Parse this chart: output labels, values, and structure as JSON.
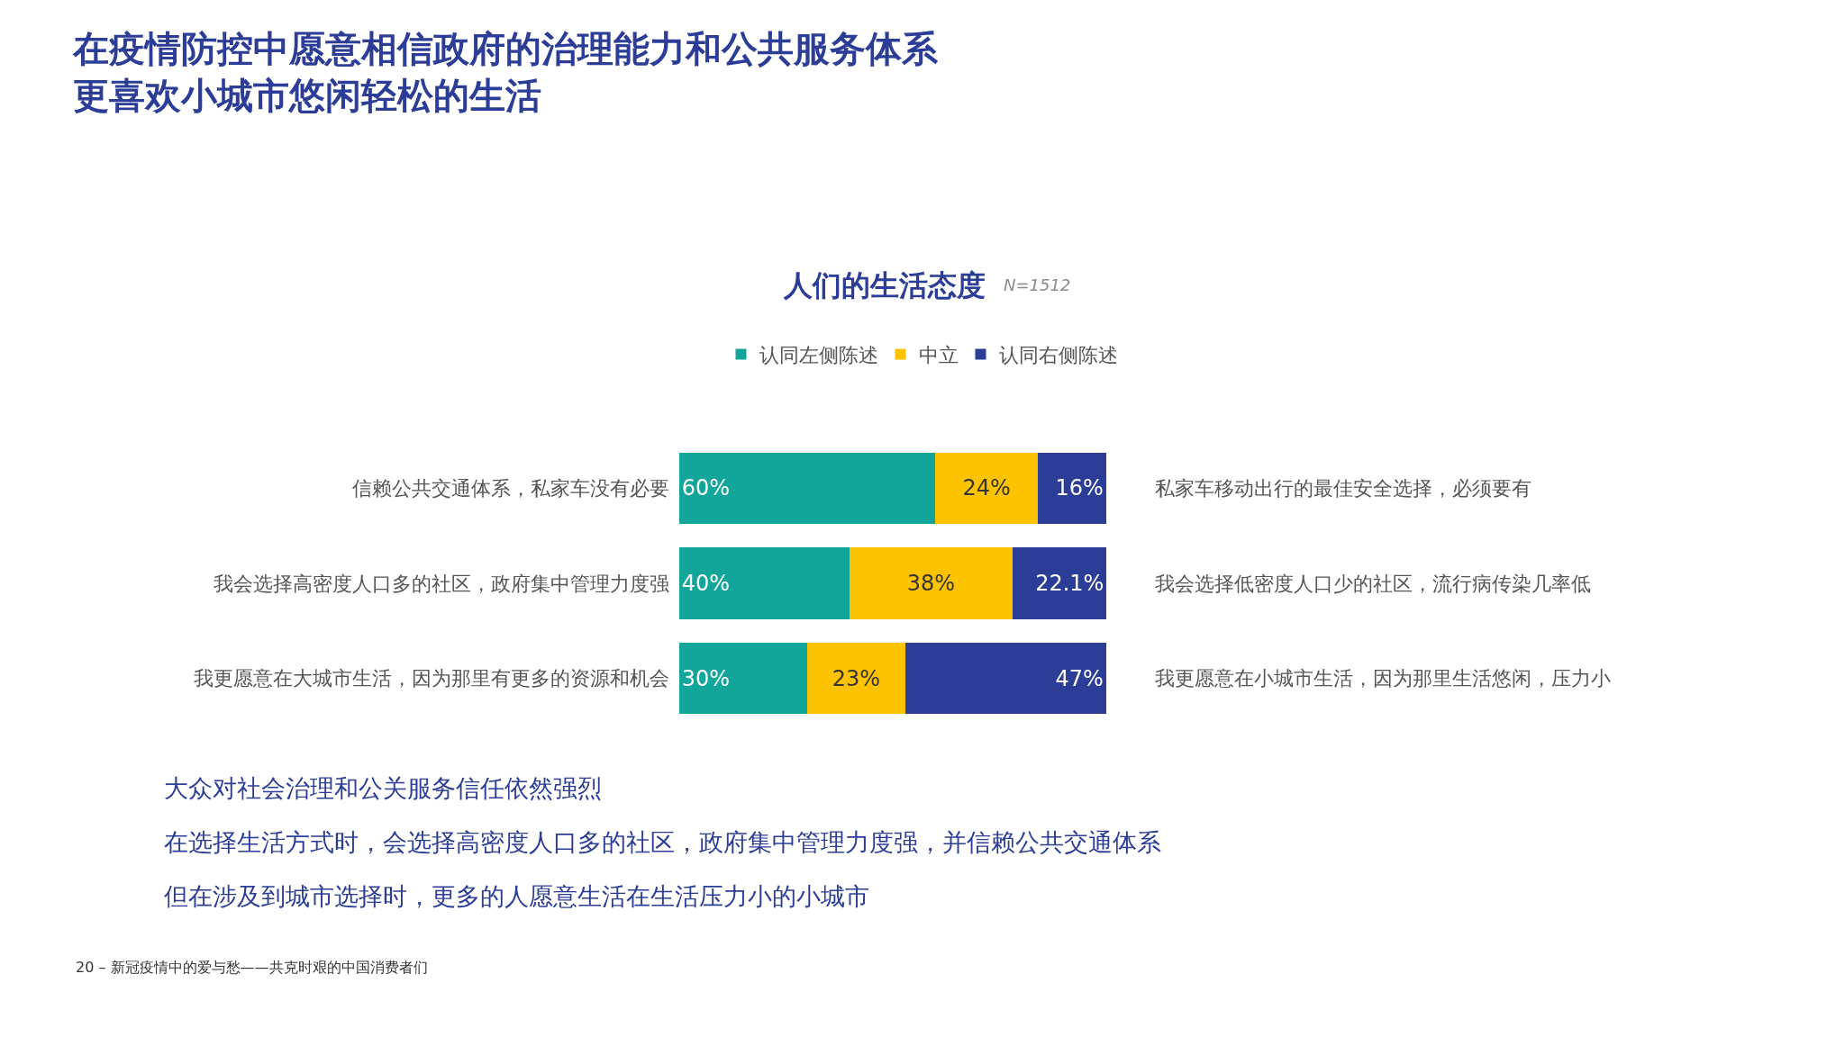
{
  "chart_data": {
    "type": "bar",
    "orientation": "horizontal",
    "stacked": true,
    "title": "在疫情防控中愿意相信政府的治理能力和公共服务体系更喜欢小城市悠闲轻松的生活",
    "subtitle": "人们的生活态度",
    "categories": [
      "信赖公共交通体系，私家车没有必要",
      "我会选择高密度人口多的社区，政府集中管理力度强",
      "我更愿意在大城市生活，因为那里有更多的资源和机会"
    ],
    "series": [
      {
        "name": "认同左侧陈述",
        "color": "#12a59a",
        "values": [
          60,
          40,
          30
        ],
        "value_labels": [
          "60%",
          "40%",
          "30%"
        ]
      },
      {
        "name": "中立",
        "color": "#fdc300",
        "values": [
          24,
          38,
          23
        ],
        "value_labels": [
          "24%",
          "38%",
          "23%"
        ]
      },
      {
        "name": "认同右侧陈述",
        "color": "#2b3d97",
        "values": [
          16,
          22.1,
          47
        ],
        "value_labels": [
          "16%",
          "22.1%",
          "47%"
        ]
      }
    ],
    "legend": "top",
    "annotations": [
      "私家车移动出行的最佳安全选择，必须要有",
      "我会选择低密度人口少的社区，流行病传染几率低",
      "我更愿意在小城市生活，因为那里生活悠闲，压力小",
      "N=1512",
      "大众对社会治理和公关服务信任依然强烈",
      "在选择生活方式时，会选择高密度人口多的社区，政府集中管理力度强，并信赖公共交通体系",
      "但在涉及到城市选择时，更多的人愿意生活在生活压力小的小城市",
      "20 – 新冠疫情中的爱与愁——共克时艰的中国消费者们"
    ]
  }
}
